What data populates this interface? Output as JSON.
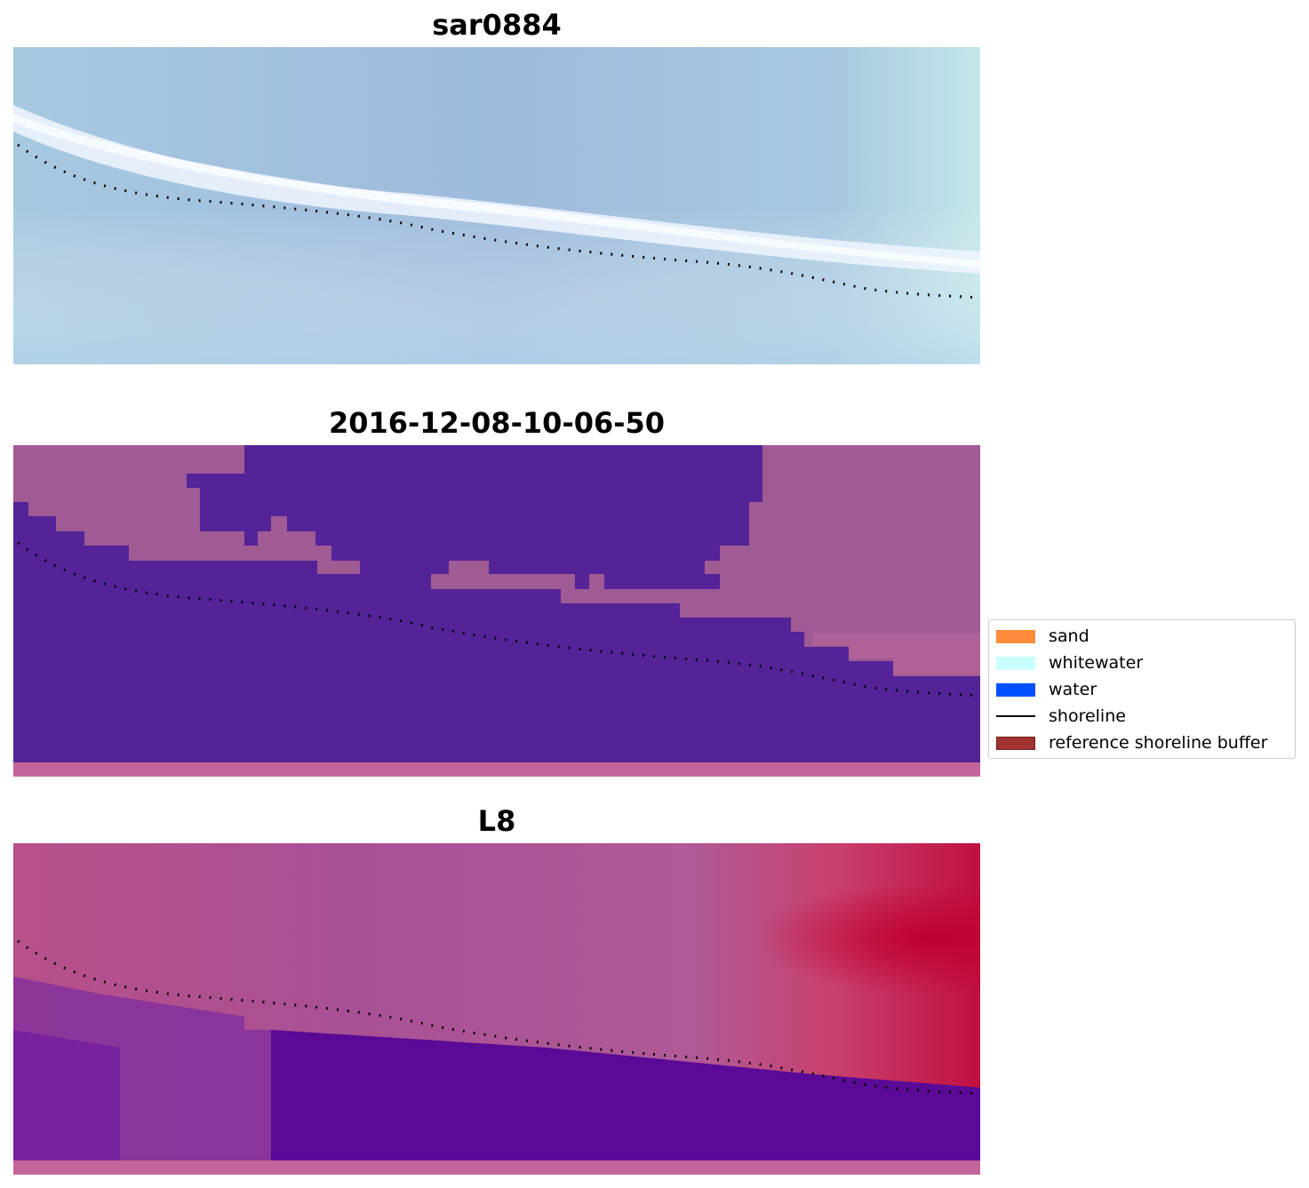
{
  "panels": [
    {
      "title": "sar0884",
      "kind": "rgb"
    },
    {
      "title": "2016-12-08-10-06-50",
      "kind": "classified"
    },
    {
      "title": "L8",
      "kind": "index"
    }
  ],
  "legend": {
    "items": [
      {
        "label": "sand",
        "color": "#ff8c3c",
        "type": "patch"
      },
      {
        "label": "whitewater",
        "color": "#c8ffff",
        "type": "patch"
      },
      {
        "label": "water",
        "color": "#0050ff",
        "type": "patch"
      },
      {
        "label": "shoreline",
        "color": "#000000",
        "type": "line"
      },
      {
        "label": "reference shoreline buffer",
        "color": "#a03232",
        "type": "patch"
      }
    ]
  },
  "colors": {
    "rgb_base": "#a9c6e0",
    "rgb_whitewater": "#f0f7ff",
    "classified_water": "#542398",
    "classified_land": "#a05a94",
    "index_high": "#c00a3c",
    "index_low": "#5a0a96",
    "shoreline_dots": "#000000"
  }
}
